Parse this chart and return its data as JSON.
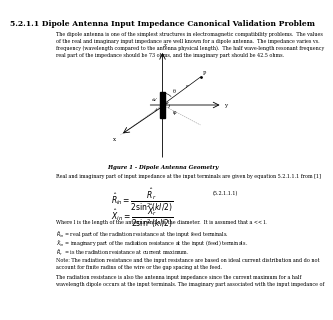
{
  "title": "5.2.1.1 Dipole Antenna Input Impedance Canonical Validation Problem",
  "intro_text": "The dipole antenna is one of the simplest structures in electromagnetic compatibility problems.  The values\nof the real and imaginary input impedance are well known for a dipole antenna.  The impedance varies vs.\nfrequency (wavelength compared to the antenna physical length).  The half wave-length resonant frequency\nreal part of the impedance should be 73 ohms, and the imaginary part should be 42.5 ohms.",
  "fig_caption": "Figure 1 - Dipole Antenna Geometry",
  "eq_text": "Real and imaginary part of input impedance at the input terminals are given by equation 5.2.1.1.1 from [1]",
  "eq_label": "(5.2.1.1.1)",
  "where_text": "Where l is the length of the antenna and a is the diameter.  It is assumed that a << l.",
  "R_in_desc": "Rᴵₙ  = real part of the radiation resistance at the input feed terminals.",
  "X_in_desc": "Xᴵₙ  = imaginary part of the radiation resistance at the input (feed) terminals.",
  "R_r_desc": "Rᵣ  = is the radiation resistance at current maximum.",
  "note_text": "Note: The radiation resistance and the input resistance are based on ideal current distribution and do not\naccount for finite radius of the wire or the gap spacing at the feed.",
  "final_text": "The radiation resistance is also the antenna input impedance since the current maximum for a half\nwavelength dipole occurs at the input terminals. The imaginary part associated with the input impedance of",
  "background_color": "#ffffff"
}
